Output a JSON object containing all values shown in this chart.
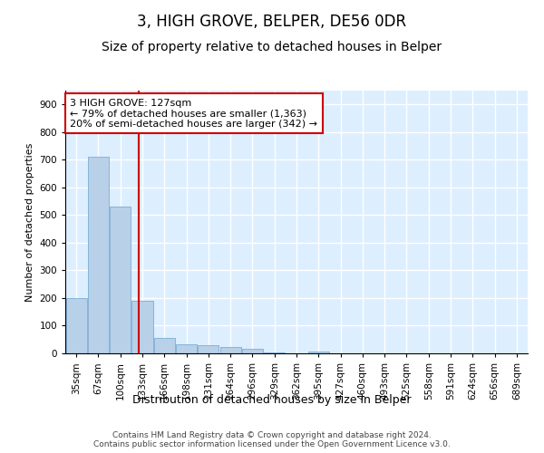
{
  "title": "3, HIGH GROVE, BELPER, DE56 0DR",
  "subtitle": "Size of property relative to detached houses in Belper",
  "xlabel": "Distribution of detached houses by size in Belper",
  "ylabel": "Number of detached properties",
  "categories": [
    "35sqm",
    "67sqm",
    "100sqm",
    "133sqm",
    "166sqm",
    "198sqm",
    "231sqm",
    "264sqm",
    "296sqm",
    "329sqm",
    "362sqm",
    "395sqm",
    "427sqm",
    "460sqm",
    "493sqm",
    "525sqm",
    "558sqm",
    "591sqm",
    "624sqm",
    "656sqm",
    "689sqm"
  ],
  "values": [
    200,
    710,
    530,
    190,
    55,
    33,
    28,
    24,
    18,
    4,
    0,
    7,
    0,
    0,
    0,
    0,
    0,
    0,
    0,
    0,
    0
  ],
  "bar_color": "#b8d0e8",
  "bar_edge_color": "#7aadd4",
  "background_color": "#ddeeff",
  "grid_color": "#ffffff",
  "marker_line_color": "#cc0000",
  "annotation_text": "3 HIGH GROVE: 127sqm\n← 79% of detached houses are smaller (1,363)\n20% of semi-detached houses are larger (342) →",
  "annotation_box_color": "#ffffff",
  "annotation_box_edge_color": "#cc0000",
  "ylim": [
    0,
    950
  ],
  "yticks": [
    0,
    100,
    200,
    300,
    400,
    500,
    600,
    700,
    800,
    900
  ],
  "footer_text": "Contains HM Land Registry data © Crown copyright and database right 2024.\nContains public sector information licensed under the Open Government Licence v3.0.",
  "title_fontsize": 12,
  "subtitle_fontsize": 10,
  "xlabel_fontsize": 9,
  "ylabel_fontsize": 8,
  "tick_fontsize": 7.5,
  "annotation_fontsize": 8,
  "footer_fontsize": 6.5
}
